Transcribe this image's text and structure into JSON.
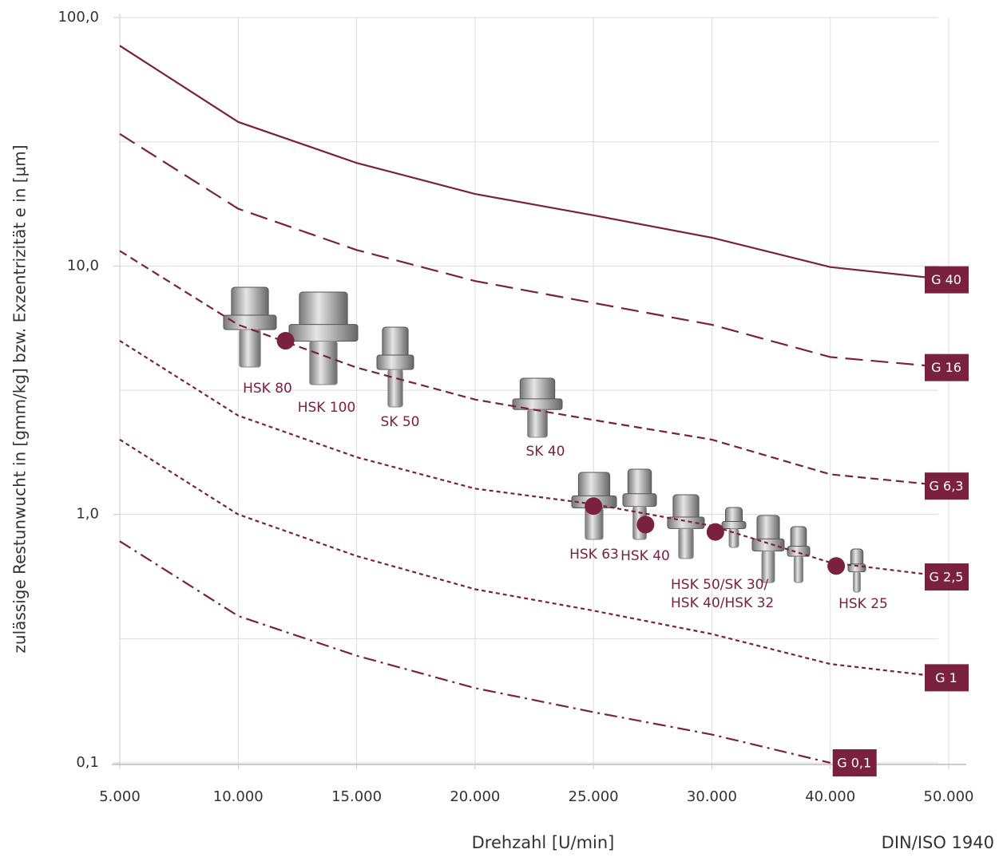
{
  "chart_data": {
    "type": "line",
    "ylabel": "zulässige Restunwucht in [gmm/kg] bzw. Exzentrizität e in [µm]",
    "xlabel": "Drehzahl [U/min]",
    "footnote": "DIN/ISO 1940",
    "log_y": true,
    "grid": true,
    "x": [
      5000,
      10000,
      15000,
      20000,
      25000,
      30000,
      40000,
      50000
    ],
    "xlim": [
      5000,
      50000
    ],
    "xticks": [
      {
        "value": 5000,
        "label": "5.000"
      },
      {
        "value": 10000,
        "label": "10.000"
      },
      {
        "value": 15000,
        "label": "15.000"
      },
      {
        "value": 20000,
        "label": "20.000"
      },
      {
        "value": 25000,
        "label": "25.000"
      },
      {
        "value": 30000,
        "label": "30.000"
      },
      {
        "value": 40000,
        "label": "40.000"
      },
      {
        "value": 50000,
        "label": "50.000"
      }
    ],
    "ylim": [
      0.1,
      100
    ],
    "yticks": [
      {
        "value": 0.1,
        "label": "0,1"
      },
      {
        "value": 1,
        "label": "1,0"
      },
      {
        "value": 10,
        "label": "10,0"
      },
      {
        "value": 100,
        "label": "100,0"
      }
    ],
    "minor_gridlines": [
      0.316,
      3.16,
      31.6
    ],
    "series": [
      {
        "name": "G 40",
        "color": "#7a2140",
        "dash": "solid",
        "values": [
          77,
          38,
          26,
          19.5,
          16,
          13,
          9.9,
          8.8
        ]
      },
      {
        "name": "G 16",
        "color": "#7a2140",
        "dash": "long",
        "values": [
          34,
          17,
          11.6,
          8.7,
          7.1,
          5.8,
          4.3,
          3.9
        ]
      },
      {
        "name": "G 6,3",
        "color": "#7a2140",
        "dash": "medium",
        "values": [
          11.5,
          5.8,
          3.9,
          2.9,
          2.4,
          2.0,
          1.45,
          1.3
        ]
      },
      {
        "name": "G 2,5",
        "color": "#7a2140",
        "dash": "short",
        "values": [
          5.0,
          2.5,
          1.7,
          1.27,
          1.1,
          0.9,
          0.64,
          0.56
        ]
      },
      {
        "name": "G 1",
        "color": "#7a2140",
        "dash": "short",
        "values": [
          2.0,
          1.0,
          0.68,
          0.5,
          0.41,
          0.33,
          0.25,
          0.22
        ]
      },
      {
        "name": "G 0,1",
        "color": "#7a2140",
        "dash": "dashdot",
        "values": [
          0.78,
          0.39,
          0.27,
          0.2,
          0.16,
          0.13,
          0.1,
          null
        ]
      }
    ],
    "points": {
      "color": "#7a2140",
      "x": [
        12000,
        25000,
        27200,
        30300,
        40500
      ],
      "values": [
        5.0,
        1.08,
        0.91,
        0.85,
        0.62
      ]
    },
    "annotations": [
      "HSK 80",
      "HSK 100",
      "SK 50",
      "SK 40",
      "HSK 63",
      "HSK 40",
      "HSK 50/SK 30/",
      "HSK 40/HSK 32",
      "HSK 25"
    ]
  }
}
